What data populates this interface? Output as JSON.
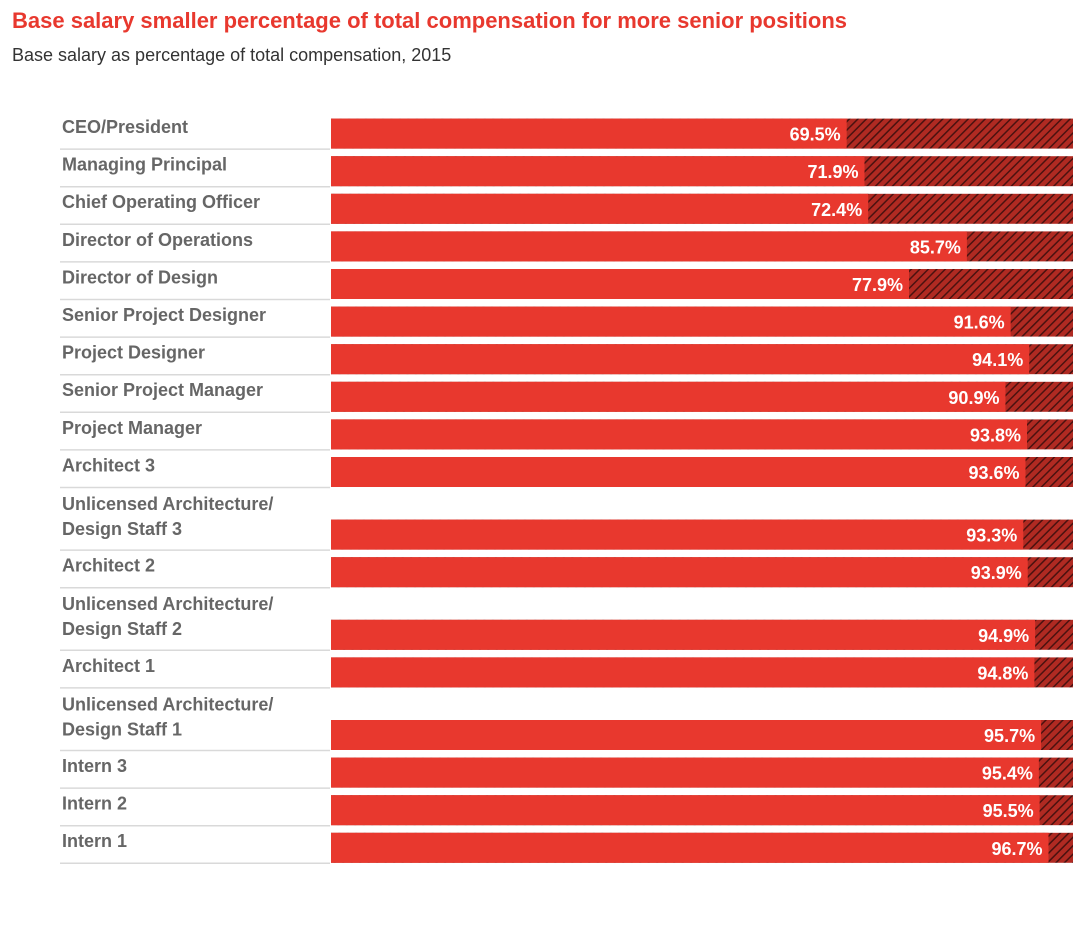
{
  "chart_data": {
    "type": "bar",
    "orientation": "horizontal",
    "stacked": true,
    "title": "Base salary smaller percentage of total compensation for more senior positions",
    "subtitle": "Base salary as percentage of total compensation, 2015",
    "xlim": [
      0,
      100
    ],
    "grid": false,
    "categories": [
      "CEO/President",
      "Managing Principal",
      "Chief Operating Officer",
      "Director of Operations",
      "Director of Design",
      "Senior Project Designer",
      "Project Designer",
      "Senior Project Manager",
      "Project Manager",
      "Architect 3",
      "Unlicensed Architecture/ Design Staff 3",
      "Architect 2",
      "Unlicensed Architecture/ Design Staff 2",
      "Architect 1",
      "Unlicensed Architecture/ Design Staff 1",
      "Intern 3",
      "Intern 2",
      "Intern 1"
    ],
    "values": [
      69.5,
      71.9,
      72.4,
      85.7,
      77.9,
      91.6,
      94.1,
      90.9,
      93.8,
      93.6,
      93.3,
      93.9,
      94.9,
      94.8,
      95.7,
      95.4,
      95.5,
      96.7
    ],
    "value_labels": [
      "69.5%",
      "71.9%",
      "72.4%",
      "85.7%",
      "77.9%",
      "91.6%",
      "94.1%",
      "90.9%",
      "93.8%",
      "93.6%",
      "93.3%",
      "93.9%",
      "94.9%",
      "94.8%",
      "95.7%",
      "95.4%",
      "95.5%",
      "96.7%"
    ],
    "colors": {
      "title": "#e8382e",
      "base_bar": "#e8382e",
      "remainder_hatch_bg": "#b02a22",
      "remainder_hatch_line": "#4a1210",
      "label": "#666666",
      "separator": "#d9d9d9"
    }
  }
}
